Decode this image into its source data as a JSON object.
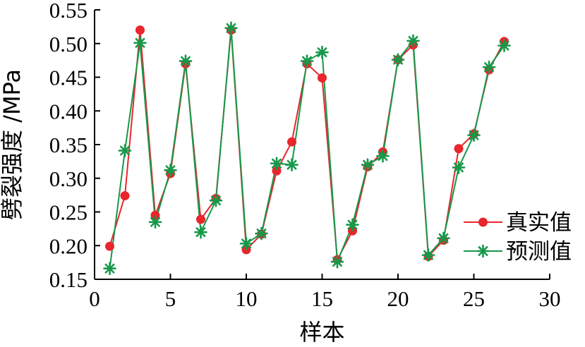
{
  "chart_data": {
    "type": "line",
    "xlabel": "样本",
    "ylabel": "劈裂强度 /MPa",
    "xlim": [
      0,
      30
    ],
    "ylim": [
      0.15,
      0.55
    ],
    "xticks": [
      0,
      5,
      10,
      15,
      20,
      25,
      30
    ],
    "xtick_labels": [
      "0",
      "5",
      "10",
      "15",
      "20",
      "25",
      "30"
    ],
    "yticks": [
      0.15,
      0.2,
      0.25,
      0.3,
      0.35,
      0.4,
      0.45,
      0.5,
      0.55
    ],
    "ytick_labels": [
      "0.15",
      "0.20",
      "0.25",
      "0.30",
      "0.35",
      "0.40",
      "0.45",
      "0.50",
      "0.55"
    ],
    "grid": false,
    "legend_position": "bottom-right",
    "x": [
      1,
      2,
      3,
      4,
      5,
      6,
      7,
      8,
      9,
      10,
      11,
      12,
      13,
      14,
      15,
      16,
      17,
      18,
      19,
      20,
      21,
      22,
      23,
      24,
      25,
      26,
      27
    ],
    "series": [
      {
        "name": "真实值",
        "color": "#e8262c",
        "marker": "circle",
        "values": [
          0.199,
          0.274,
          0.52,
          0.245,
          0.307,
          0.47,
          0.239,
          0.27,
          0.52,
          0.194,
          0.217,
          0.311,
          0.354,
          0.47,
          0.449,
          0.179,
          0.222,
          0.317,
          0.339,
          0.476,
          0.498,
          0.184,
          0.208,
          0.344,
          0.366,
          0.461,
          0.503
        ]
      },
      {
        "name": "预测值",
        "color": "#17984a",
        "marker": "star",
        "values": [
          0.166,
          0.341,
          0.501,
          0.235,
          0.312,
          0.474,
          0.22,
          0.267,
          0.523,
          0.203,
          0.218,
          0.322,
          0.32,
          0.474,
          0.487,
          0.176,
          0.231,
          0.32,
          0.333,
          0.476,
          0.504,
          0.186,
          0.211,
          0.316,
          0.364,
          0.465,
          0.497
        ]
      }
    ]
  }
}
